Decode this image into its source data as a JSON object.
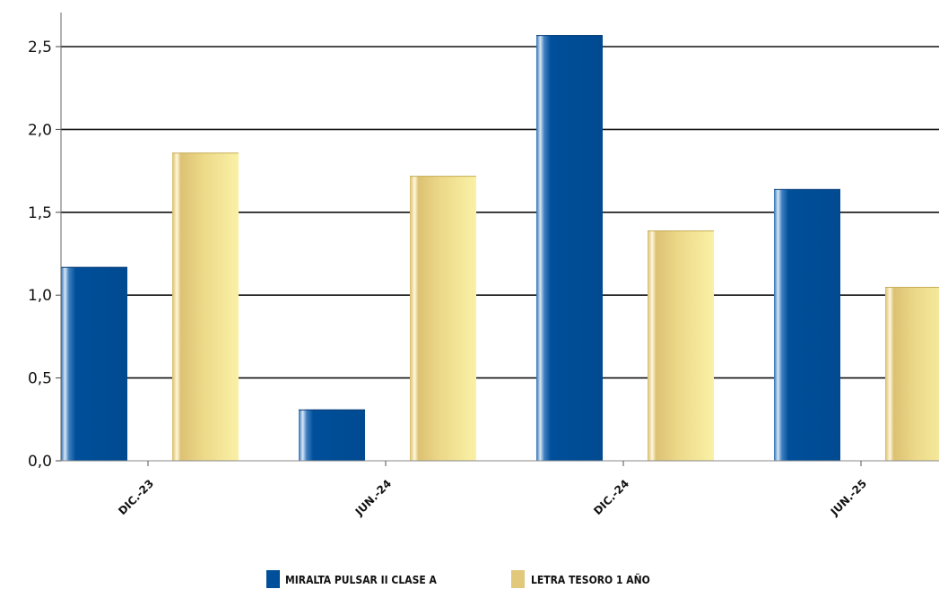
{
  "chart_data": {
    "type": "bar",
    "categories": [
      "DIC.-23",
      "JUN.-24",
      "DIC.-24",
      "JUN.-25"
    ],
    "series": [
      {
        "name": "MIRALTA PULSAR II CLASE A",
        "color": "#004f9a",
        "values": [
          1.17,
          0.31,
          2.57,
          1.64
        ]
      },
      {
        "name": "LETRA TESORO 1 AÑO",
        "color": "#e2c87a",
        "values": [
          1.86,
          1.72,
          1.39,
          1.05
        ]
      }
    ],
    "y_ticks": [
      "0,0",
      "0,5",
      "1,0",
      "1,5",
      "2,0",
      "2,5"
    ],
    "ylim": [
      0,
      2.5
    ],
    "grid": true,
    "legend_position": "bottom-center"
  }
}
